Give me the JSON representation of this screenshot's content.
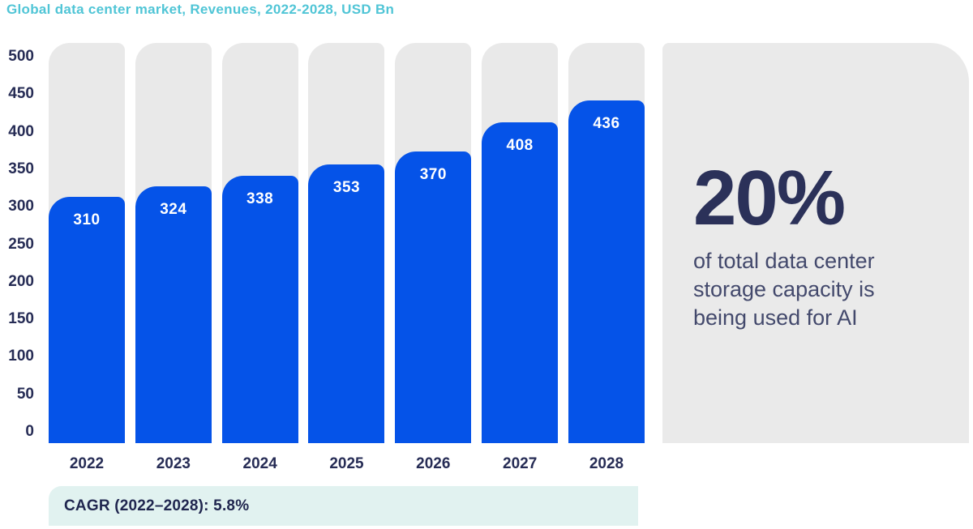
{
  "title": "Global data center market, Revenues, 2022-2028, USD Bn",
  "chart_data": {
    "type": "bar",
    "title": "Global data center market, Revenues, 2022-2028, USD Bn",
    "categories": [
      "2022",
      "2023",
      "2024",
      "2025",
      "2026",
      "2027",
      "2028"
    ],
    "values": [
      310,
      324,
      338,
      353,
      370,
      408,
      436
    ],
    "xlabel": "",
    "ylabel": "",
    "ylim": [
      0,
      500
    ],
    "y_ticks": [
      500,
      450,
      400,
      350,
      300,
      250,
      200,
      150,
      100,
      50,
      0
    ],
    "grid": false,
    "legend": "none",
    "value_labels_shown": true,
    "bar_color": "#0553e8",
    "track_color": "#e9e9e9",
    "value_label_color": "#ffffff"
  },
  "side_panel": {
    "stat": "20%",
    "description_lines": [
      "of total data center",
      "storage capacity is",
      "being used for AI"
    ]
  },
  "cagr_note": "CAGR (2022–2028): 5.8%",
  "colors": {
    "accent_teal": "#50c5d6",
    "navy": "#262c55",
    "bar_blue": "#0553e8",
    "column_gray": "#e9e9e9",
    "panel_gray": "#eaeaea",
    "mint": "#e1f2f0"
  }
}
